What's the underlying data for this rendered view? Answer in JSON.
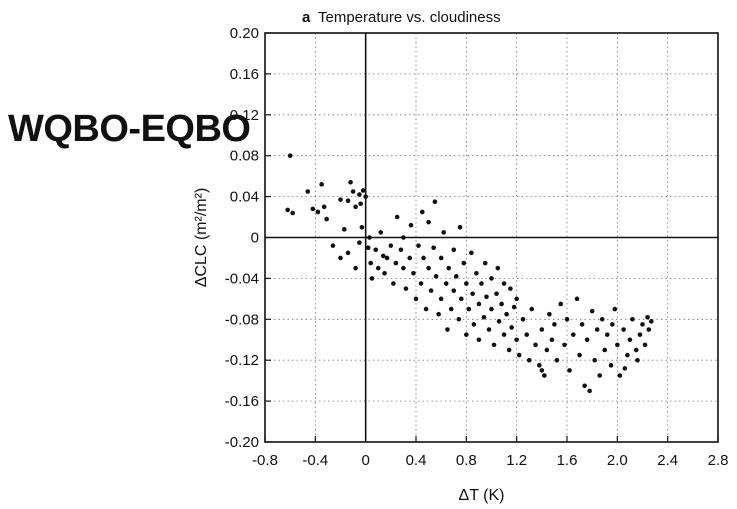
{
  "overlay_label": "WQBO-EQBO",
  "chart_data": {
    "type": "scatter",
    "panel_letter": "a",
    "title": "Temperature vs. cloudiness",
    "xlabel": "ΔT (K)",
    "ylabel": "ΔCLC (m²/m²)",
    "xlim": [
      -0.8,
      2.8
    ],
    "ylim": [
      -0.2,
      0.2
    ],
    "xticks": [
      -0.8,
      -0.4,
      0,
      0.4,
      0.8,
      1.2,
      1.6,
      2.0,
      2.4,
      2.8
    ],
    "xtick_labels": [
      "-0.8",
      "-0.4",
      "0",
      "0.4",
      "0.8",
      "1.2",
      "1.6",
      "2.0",
      "2.4",
      "2.8"
    ],
    "yticks": [
      0.2,
      0.16,
      0.12,
      0.08,
      0.04,
      0,
      -0.04,
      -0.08,
      -0.12,
      -0.16,
      -0.2
    ],
    "ytick_labels": [
      "0.20",
      "0.16",
      "0.12",
      "0.08",
      "0.04",
      "0",
      "-0.04",
      "-0.08",
      "-0.12",
      "-0.16",
      "-0.20"
    ],
    "grid": "dotted",
    "reference_lines": {
      "x": 0,
      "y": 0
    },
    "points": [
      [
        -0.6,
        0.08
      ],
      [
        -0.62,
        0.027
      ],
      [
        -0.58,
        0.024
      ],
      [
        -0.46,
        0.045
      ],
      [
        -0.42,
        0.028
      ],
      [
        -0.38,
        0.025
      ],
      [
        -0.35,
        0.052
      ],
      [
        -0.33,
        0.03
      ],
      [
        -0.31,
        0.018
      ],
      [
        -0.2,
        0.037
      ],
      [
        -0.14,
        0.036
      ],
      [
        -0.12,
        0.054
      ],
      [
        -0.08,
        0.03
      ],
      [
        -0.05,
        0.042
      ],
      [
        -0.04,
        0.033
      ],
      [
        0.0,
        0.04
      ],
      [
        -0.02,
        0.046
      ],
      [
        -0.1,
        0.045
      ],
      [
        -0.26,
        -0.008
      ],
      [
        -0.2,
        -0.02
      ],
      [
        -0.17,
        0.008
      ],
      [
        -0.14,
        -0.015
      ],
      [
        -0.08,
        -0.03
      ],
      [
        -0.05,
        -0.005
      ],
      [
        -0.03,
        0.01
      ],
      [
        0.02,
        -0.01
      ],
      [
        0.03,
        0.0
      ],
      [
        0.04,
        -0.025
      ],
      [
        0.05,
        -0.04
      ],
      [
        0.08,
        -0.012
      ],
      [
        0.1,
        -0.03
      ],
      [
        0.12,
        0.005
      ],
      [
        0.14,
        -0.018
      ],
      [
        0.15,
        -0.035
      ],
      [
        0.17,
        -0.02
      ],
      [
        0.2,
        -0.008
      ],
      [
        0.22,
        -0.045
      ],
      [
        0.24,
        -0.025
      ],
      [
        0.25,
        0.02
      ],
      [
        0.28,
        -0.012
      ],
      [
        0.3,
        -0.03
      ],
      [
        0.3,
        0.0
      ],
      [
        0.32,
        -0.05
      ],
      [
        0.35,
        -0.02
      ],
      [
        0.36,
        0.012
      ],
      [
        0.38,
        -0.035
      ],
      [
        0.4,
        -0.06
      ],
      [
        0.42,
        -0.008
      ],
      [
        0.44,
        -0.045
      ],
      [
        0.45,
        0.025
      ],
      [
        0.46,
        -0.02
      ],
      [
        0.48,
        -0.07
      ],
      [
        0.5,
        -0.03
      ],
      [
        0.5,
        0.015
      ],
      [
        0.52,
        -0.052
      ],
      [
        0.54,
        -0.01
      ],
      [
        0.55,
        0.035
      ],
      [
        0.56,
        -0.038
      ],
      [
        0.58,
        -0.075
      ],
      [
        0.6,
        -0.02
      ],
      [
        0.6,
        -0.06
      ],
      [
        0.62,
        0.005
      ],
      [
        0.64,
        -0.045
      ],
      [
        0.65,
        -0.09
      ],
      [
        0.66,
        -0.03
      ],
      [
        0.68,
        -0.07
      ],
      [
        0.7,
        -0.012
      ],
      [
        0.7,
        -0.052
      ],
      [
        0.72,
        -0.038
      ],
      [
        0.74,
        -0.08
      ],
      [
        0.75,
        0.01
      ],
      [
        0.76,
        -0.06
      ],
      [
        0.78,
        -0.025
      ],
      [
        0.8,
        -0.045
      ],
      [
        0.8,
        -0.095
      ],
      [
        0.82,
        -0.07
      ],
      [
        0.84,
        -0.015
      ],
      [
        0.85,
        -0.055
      ],
      [
        0.86,
        -0.085
      ],
      [
        0.88,
        -0.035
      ],
      [
        0.9,
        -0.065
      ],
      [
        0.9,
        -0.1
      ],
      [
        0.92,
        -0.045
      ],
      [
        0.94,
        -0.078
      ],
      [
        0.95,
        -0.025
      ],
      [
        0.96,
        -0.058
      ],
      [
        0.98,
        -0.09
      ],
      [
        1.0,
        -0.04
      ],
      [
        1.0,
        -0.07
      ],
      [
        1.02,
        -0.105
      ],
      [
        1.04,
        -0.055
      ],
      [
        1.05,
        -0.03
      ],
      [
        1.06,
        -0.082
      ],
      [
        1.08,
        -0.065
      ],
      [
        1.1,
        -0.045
      ],
      [
        1.1,
        -0.095
      ],
      [
        1.12,
        -0.075
      ],
      [
        1.14,
        -0.11
      ],
      [
        1.15,
        -0.05
      ],
      [
        1.16,
        -0.088
      ],
      [
        1.18,
        -0.068
      ],
      [
        1.2,
        -0.1
      ],
      [
        1.2,
        -0.06
      ],
      [
        1.22,
        -0.115
      ],
      [
        1.25,
        -0.08
      ],
      [
        1.28,
        -0.095
      ],
      [
        1.3,
        -0.12
      ],
      [
        1.32,
        -0.07
      ],
      [
        1.35,
        -0.105
      ],
      [
        1.38,
        -0.125
      ],
      [
        1.4,
        -0.09
      ],
      [
        1.4,
        -0.13
      ],
      [
        1.42,
        -0.135
      ],
      [
        1.44,
        -0.11
      ],
      [
        1.46,
        -0.075
      ],
      [
        1.48,
        -0.1
      ],
      [
        1.5,
        -0.085
      ],
      [
        1.52,
        -0.12
      ],
      [
        1.55,
        -0.065
      ],
      [
        1.58,
        -0.105
      ],
      [
        1.6,
        -0.08
      ],
      [
        1.62,
        -0.13
      ],
      [
        1.65,
        -0.095
      ],
      [
        1.68,
        -0.06
      ],
      [
        1.7,
        -0.115
      ],
      [
        1.72,
        -0.085
      ],
      [
        1.74,
        -0.145
      ],
      [
        1.76,
        -0.1
      ],
      [
        1.78,
        -0.15
      ],
      [
        1.8,
        -0.072
      ],
      [
        1.82,
        -0.12
      ],
      [
        1.84,
        -0.09
      ],
      [
        1.86,
        -0.135
      ],
      [
        1.88,
        -0.08
      ],
      [
        1.9,
        -0.11
      ],
      [
        1.92,
        -0.095
      ],
      [
        1.95,
        -0.125
      ],
      [
        1.98,
        -0.07
      ],
      [
        2.0,
        -0.105
      ],
      [
        2.02,
        -0.135
      ],
      [
        2.05,
        -0.09
      ],
      [
        2.08,
        -0.115
      ],
      [
        2.1,
        -0.1
      ],
      [
        2.12,
        -0.08
      ],
      [
        2.15,
        -0.11
      ],
      [
        2.18,
        -0.095
      ],
      [
        2.2,
        -0.085
      ],
      [
        2.22,
        -0.105
      ],
      [
        2.25,
        -0.09
      ],
      [
        2.27,
        -0.082
      ],
      [
        2.24,
        -0.078
      ],
      [
        2.16,
        -0.12
      ],
      [
        2.06,
        -0.128
      ],
      [
        1.96,
        -0.085
      ]
    ]
  }
}
